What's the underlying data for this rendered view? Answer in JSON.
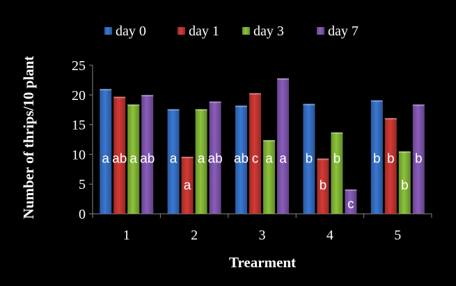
{
  "chart_data": {
    "type": "bar",
    "xlabel": "Trearment",
    "ylabel": "Number of thrips/10 plant",
    "ylim": [
      0,
      25
    ],
    "yticks": [
      "0",
      "5",
      "10",
      "15",
      "20",
      "25"
    ],
    "categories": [
      "1",
      "2",
      "3",
      "4",
      "5"
    ],
    "legend_position": "top",
    "grid": false,
    "series": [
      {
        "name": "day 0",
        "color": "#3a78d4",
        "values": [
          21.0,
          17.6,
          18.2,
          18.5,
          19.1
        ],
        "labels": [
          "a",
          "a",
          "ab",
          "b",
          "b"
        ]
      },
      {
        "name": "day 1",
        "color": "#d43a35",
        "values": [
          19.7,
          9.6,
          20.3,
          9.3,
          16.1
        ],
        "labels": [
          "ab",
          "a",
          "c",
          "b",
          "b"
        ]
      },
      {
        "name": "day 3",
        "color": "#8cc43a",
        "values": [
          18.4,
          17.6,
          12.4,
          13.7,
          10.5
        ],
        "labels": [
          "a",
          "a",
          "a",
          "b",
          "b"
        ]
      },
      {
        "name": "day 7",
        "color": "#8a5dbc",
        "values": [
          20.0,
          18.9,
          22.8,
          4.1,
          18.4
        ],
        "labels": [
          "ab",
          "ab",
          "a",
          "c",
          "b"
        ]
      }
    ]
  }
}
